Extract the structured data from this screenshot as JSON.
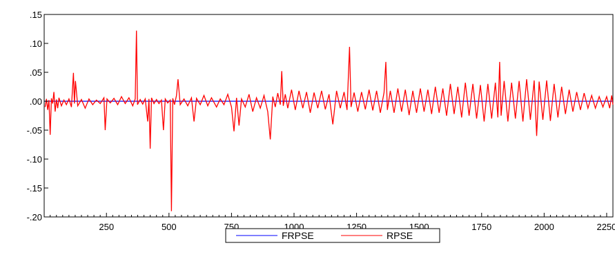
{
  "chart_data": {
    "type": "line",
    "title": "",
    "xlabel": "",
    "ylabel": "",
    "xlim": [
      1,
      2275
    ],
    "ylim": [
      -0.2,
      0.15
    ],
    "x_ticks": [
      250,
      500,
      750,
      1000,
      1250,
      1500,
      1750,
      2000,
      2250
    ],
    "x_tick_labels": [
      "250",
      "500",
      "750",
      "1000",
      "1250",
      "1500",
      "1750",
      "2000",
      "2250"
    ],
    "y_ticks": [
      0.15,
      0.1,
      0.05,
      0.0,
      -0.05,
      -0.1,
      -0.15,
      -0.2
    ],
    "y_tick_labels": [
      ".15",
      ".10",
      ".05",
      ".00",
      "-.05",
      "-.10",
      "-.15",
      "-.20"
    ],
    "grid": false,
    "legend_position": "bottom-center",
    "series": [
      {
        "name": "FRPSE",
        "color": "#0000ff",
        "points": [
          [
            1,
            0.0
          ],
          [
            2275,
            0.0
          ]
        ]
      },
      {
        "name": "RPSE",
        "color": "#ff0000",
        "points": [
          [
            5,
            -0.01
          ],
          [
            10,
            0.004
          ],
          [
            15,
            -0.015
          ],
          [
            20,
            0.002
          ],
          [
            25,
            -0.058
          ],
          [
            30,
            0.005
          ],
          [
            35,
            -0.004
          ],
          [
            40,
            0.016
          ],
          [
            45,
            -0.018
          ],
          [
            50,
            0.003
          ],
          [
            55,
            -0.012
          ],
          [
            60,
            0.006
          ],
          [
            70,
            -0.008
          ],
          [
            80,
            0.002
          ],
          [
            90,
            -0.006
          ],
          [
            100,
            0.004
          ],
          [
            110,
            -0.01
          ],
          [
            118,
            0.049
          ],
          [
            122,
            -0.004
          ],
          [
            126,
            0.035
          ],
          [
            135,
            -0.008
          ],
          [
            150,
            0.003
          ],
          [
            165,
            -0.012
          ],
          [
            180,
            0.004
          ],
          [
            195,
            -0.006
          ],
          [
            210,
            0.002
          ],
          [
            225,
            -0.004
          ],
          [
            240,
            0.006
          ],
          [
            245,
            -0.05
          ],
          [
            252,
            0.004
          ],
          [
            265,
            -0.003
          ],
          [
            280,
            0.005
          ],
          [
            295,
            -0.006
          ],
          [
            310,
            0.008
          ],
          [
            325,
            -0.004
          ],
          [
            340,
            0.006
          ],
          [
            355,
            -0.008
          ],
          [
            365,
            0.004
          ],
          [
            370,
            0.122
          ],
          [
            374,
            -0.006
          ],
          [
            385,
            0.003
          ],
          [
            395,
            -0.005
          ],
          [
            405,
            0.004
          ],
          [
            415,
            -0.035
          ],
          [
            420,
            0.004
          ],
          [
            425,
            -0.082
          ],
          [
            430,
            0.006
          ],
          [
            440,
            -0.004
          ],
          [
            450,
            0.003
          ],
          [
            460,
            -0.004
          ],
          [
            470,
            0.002
          ],
          [
            478,
            -0.05
          ],
          [
            485,
            0.004
          ],
          [
            495,
            -0.003
          ],
          [
            505,
            0.002
          ],
          [
            510,
            -0.19
          ],
          [
            515,
            0.005
          ],
          [
            522,
            -0.006
          ],
          [
            530,
            0.01
          ],
          [
            536,
            0.038
          ],
          [
            545,
            -0.006
          ],
          [
            560,
            0.004
          ],
          [
            575,
            -0.008
          ],
          [
            590,
            0.006
          ],
          [
            600,
            -0.035
          ],
          [
            610,
            0.005
          ],
          [
            625,
            -0.006
          ],
          [
            640,
            0.01
          ],
          [
            655,
            -0.008
          ],
          [
            670,
            0.006
          ],
          [
            690,
            -0.01
          ],
          [
            705,
            0.004
          ],
          [
            720,
            -0.006
          ],
          [
            735,
            0.012
          ],
          [
            750,
            -0.01
          ],
          [
            760,
            -0.052
          ],
          [
            770,
            0.006
          ],
          [
            780,
            -0.042
          ],
          [
            790,
            0.004
          ],
          [
            805,
            -0.01
          ],
          [
            820,
            0.012
          ],
          [
            835,
            -0.018
          ],
          [
            850,
            0.006
          ],
          [
            865,
            -0.012
          ],
          [
            880,
            0.01
          ],
          [
            895,
            -0.018
          ],
          [
            905,
            -0.066
          ],
          [
            915,
            0.008
          ],
          [
            925,
            -0.01
          ],
          [
            935,
            0.014
          ],
          [
            945,
            -0.006
          ],
          [
            951,
            0.052
          ],
          [
            957,
            -0.008
          ],
          [
            965,
            0.012
          ],
          [
            975,
            -0.012
          ],
          [
            990,
            0.02
          ],
          [
            1005,
            -0.015
          ],
          [
            1020,
            0.018
          ],
          [
            1035,
            -0.012
          ],
          [
            1050,
            0.016
          ],
          [
            1065,
            -0.02
          ],
          [
            1080,
            0.015
          ],
          [
            1095,
            -0.012
          ],
          [
            1110,
            0.018
          ],
          [
            1125,
            -0.014
          ],
          [
            1140,
            0.012
          ],
          [
            1155,
            -0.04
          ],
          [
            1170,
            0.018
          ],
          [
            1185,
            -0.012
          ],
          [
            1200,
            0.016
          ],
          [
            1212,
            -0.015
          ],
          [
            1222,
            0.094
          ],
          [
            1228,
            -0.01
          ],
          [
            1240,
            0.015
          ],
          [
            1255,
            -0.018
          ],
          [
            1270,
            0.016
          ],
          [
            1285,
            -0.014
          ],
          [
            1300,
            0.02
          ],
          [
            1315,
            -0.016
          ],
          [
            1330,
            0.018
          ],
          [
            1345,
            -0.02
          ],
          [
            1360,
            0.015
          ],
          [
            1367,
            0.068
          ],
          [
            1373,
            -0.015
          ],
          [
            1385,
            0.018
          ],
          [
            1400,
            -0.02
          ],
          [
            1415,
            0.022
          ],
          [
            1430,
            -0.018
          ],
          [
            1445,
            0.02
          ],
          [
            1460,
            -0.024
          ],
          [
            1475,
            0.018
          ],
          [
            1490,
            -0.02
          ],
          [
            1505,
            0.022
          ],
          [
            1520,
            -0.018
          ],
          [
            1535,
            0.02
          ],
          [
            1550,
            -0.022
          ],
          [
            1565,
            0.025
          ],
          [
            1580,
            -0.02
          ],
          [
            1595,
            0.022
          ],
          [
            1610,
            -0.025
          ],
          [
            1625,
            0.03
          ],
          [
            1640,
            -0.022
          ],
          [
            1655,
            0.025
          ],
          [
            1670,
            -0.028
          ],
          [
            1685,
            0.032
          ],
          [
            1700,
            -0.025
          ],
          [
            1715,
            0.03
          ],
          [
            1730,
            -0.03
          ],
          [
            1745,
            0.028
          ],
          [
            1760,
            -0.035
          ],
          [
            1775,
            0.03
          ],
          [
            1790,
            -0.03
          ],
          [
            1805,
            0.032
          ],
          [
            1815,
            -0.028
          ],
          [
            1822,
            0.068
          ],
          [
            1828,
            -0.025
          ],
          [
            1840,
            0.035
          ],
          [
            1855,
            -0.035
          ],
          [
            1870,
            0.032
          ],
          [
            1885,
            -0.03
          ],
          [
            1900,
            0.035
          ],
          [
            1915,
            -0.035
          ],
          [
            1930,
            0.038
          ],
          [
            1945,
            -0.032
          ],
          [
            1960,
            0.036
          ],
          [
            1970,
            -0.06
          ],
          [
            1980,
            0.034
          ],
          [
            1995,
            -0.032
          ],
          [
            2010,
            0.036
          ],
          [
            2025,
            -0.034
          ],
          [
            2040,
            0.03
          ],
          [
            2055,
            -0.028
          ],
          [
            2070,
            0.025
          ],
          [
            2085,
            -0.022
          ],
          [
            2100,
            0.02
          ],
          [
            2115,
            -0.018
          ],
          [
            2130,
            0.016
          ],
          [
            2145,
            -0.015
          ],
          [
            2160,
            0.014
          ],
          [
            2175,
            -0.012
          ],
          [
            2190,
            0.01
          ],
          [
            2205,
            -0.012
          ],
          [
            2220,
            0.008
          ],
          [
            2235,
            -0.01
          ],
          [
            2250,
            0.008
          ],
          [
            2262,
            -0.012
          ],
          [
            2270,
            0.01
          ],
          [
            2275,
            -0.006
          ]
        ]
      }
    ]
  }
}
